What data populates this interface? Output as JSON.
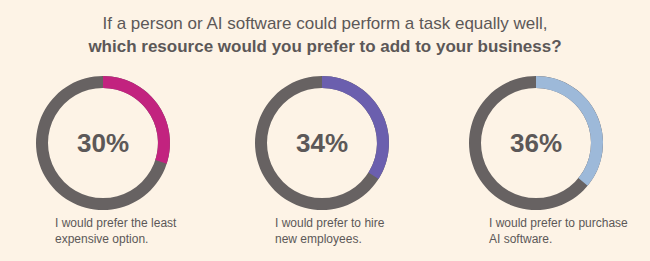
{
  "chart_data": {
    "type": "gauge",
    "title": "If a person or AI software could perform a task equally well,",
    "subtitle": "which resource would you prefer to add to your business?",
    "categories": [
      "I would prefer the least expensive option.",
      "I would prefer to hire new employees.",
      "I would prefer to purchase AI software."
    ],
    "values": [
      30,
      34,
      36
    ],
    "value_labels": [
      "30%",
      "34%",
      "36%"
    ],
    "colors": [
      "#c2237f",
      "#6b5fae",
      "#9db9d9"
    ],
    "ylim": [
      0,
      100
    ],
    "data_labels": true
  }
}
